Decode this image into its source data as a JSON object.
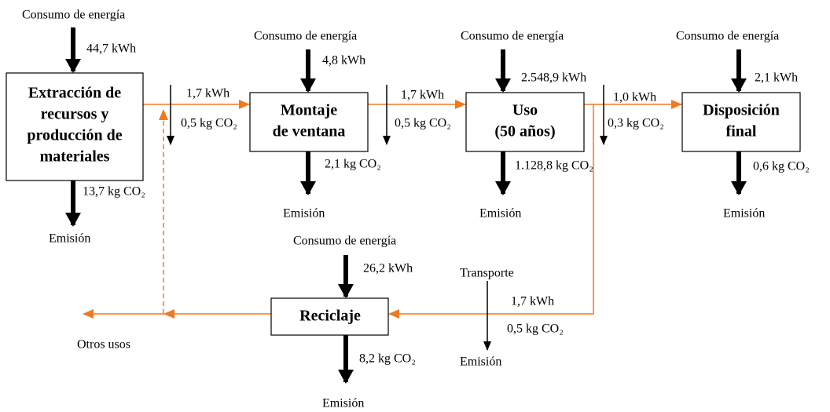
{
  "processes": [
    {
      "lines": [
        "Extracción de",
        "recursos y",
        "producción de",
        "materiales"
      ],
      "energy_label": "Consumo de energía",
      "energy": "44,7 kWh",
      "emission": "13,7 kg CO₂",
      "emission_label": "Emisión"
    },
    {
      "lines": [
        "Montaje",
        "de ventana"
      ],
      "energy_label": "Consumo de energía",
      "energy": "4,8 kWh",
      "emission": "2,1 kg CO₂",
      "emission_label": "Emisión"
    },
    {
      "lines": [
        "Uso",
        "(50 años)"
      ],
      "energy_label": "Consumo de energía",
      "energy": "2.548,9 kWh",
      "emission": "1.128,8 kg CO₂",
      "emission_label": "Emisión"
    },
    {
      "lines": [
        "Disposición",
        "final"
      ],
      "energy_label": "Consumo de energía",
      "energy": "2,1 kWh",
      "emission": "0,6 kg CO₂",
      "emission_label": "Emisión"
    },
    {
      "lines": [
        "Reciclaje"
      ],
      "energy_label": "Consumo de energía",
      "energy": "26,2 kWh",
      "emission": "8,2 kg CO₂",
      "emission_label": "Emisión"
    }
  ],
  "transports": [
    {
      "energy": "1,7 kWh",
      "emission": "0,5 kg CO₂"
    },
    {
      "energy": "1,7 kWh",
      "emission": "0,5 kg CO₂"
    },
    {
      "energy": "1,0 kWh",
      "emission": "0,3 kg CO₂"
    },
    {
      "label": "Transporte",
      "energy": "1,7 kWh",
      "emission": "0,5 kg CO₂",
      "emission_label": "Emisión"
    }
  ],
  "other_uses": "Otros usos"
}
